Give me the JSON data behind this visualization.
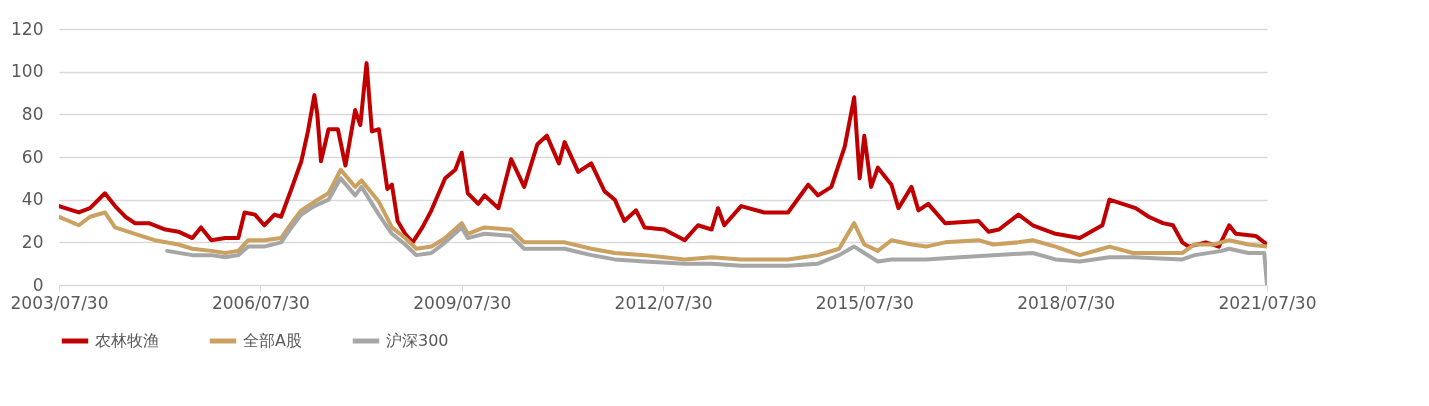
{
  "chart_data": {
    "type": "line",
    "xlim": [
      "2003-07-30",
      "2021-07-30"
    ],
    "xticks": [
      {
        "value": "2003-07-30",
        "label": "2003/07/30"
      },
      {
        "value": "2006-07-30",
        "label": "2006/07/30"
      },
      {
        "value": "2009-07-30",
        "label": "2009/07/30"
      },
      {
        "value": "2012-07-30",
        "label": "2012/07/30"
      },
      {
        "value": "2015-07-30",
        "label": "2015/07/30"
      },
      {
        "value": "2018-07-30",
        "label": "2018/07/30"
      },
      {
        "value": "2021-07-30",
        "label": "2021/07/30"
      }
    ],
    "ylim": [
      0,
      120
    ],
    "yticks": [
      0,
      20,
      40,
      60,
      80,
      100,
      120
    ],
    "grid": "y",
    "legend": "bottom",
    "line_style": "solid",
    "series": [
      {
        "name": "农林牧渔",
        "color": "#c00000",
        "x": [
          "2003-07-30",
          "2003-11-15",
          "2004-01-15",
          "2004-04-05",
          "2004-05-30",
          "2004-07-25",
          "2004-09-15",
          "2004-11-30",
          "2005-02-28",
          "2005-05-10",
          "2005-07-25",
          "2005-09-10",
          "2005-11-05",
          "2006-01-20",
          "2006-04-01",
          "2006-05-05",
          "2006-07-01",
          "2006-08-20",
          "2006-10-15",
          "2006-11-20",
          "2007-01-15",
          "2007-03-10",
          "2007-04-15",
          "2007-05-20",
          "2007-06-05",
          "2007-06-25",
          "2007-08-05",
          "2007-09-25",
          "2007-11-05",
          "2007-12-28",
          "2008-01-25",
          "2008-02-28",
          "2008-03-28",
          "2008-05-05",
          "2008-06-20",
          "2008-07-15",
          "2008-08-15",
          "2008-09-25",
          "2008-11-05",
          "2008-12-28",
          "2009-02-15",
          "2009-05-01",
          "2009-06-25",
          "2009-07-30",
          "2009-09-01",
          "2009-10-28",
          "2009-12-01",
          "2010-02-15",
          "2010-04-25",
          "2010-07-05",
          "2010-09-15",
          "2010-11-05",
          "2011-01-10",
          "2011-02-10",
          "2011-04-25",
          "2011-07-05",
          "2011-09-15",
          "2011-11-10",
          "2012-01-01",
          "2012-03-05",
          "2012-04-20",
          "2012-08-05",
          "2012-11-25",
          "2013-02-05",
          "2013-04-20",
          "2013-05-25",
          "2013-06-28",
          "2013-09-28",
          "2014-02-01",
          "2014-06-10",
          "2014-09-28",
          "2014-11-20",
          "2015-02-01",
          "2015-04-15",
          "2015-06-05",
          "2015-07-05",
          "2015-07-30",
          "2015-09-05",
          "2015-10-12",
          "2015-12-25",
          "2016-02-01",
          "2016-04-12",
          "2016-05-20",
          "2016-07-12",
          "2016-10-12",
          "2017-04-12",
          "2017-06-05",
          "2017-08-01",
          "2017-11-15",
          "2018-02-01",
          "2018-06-05",
          "2018-10-15",
          "2019-02-15",
          "2019-03-25",
          "2019-08-15",
          "2019-10-25",
          "2020-01-10",
          "2020-03-05",
          "2020-04-25",
          "2020-05-30",
          "2020-08-30",
          "2020-11-10",
          "2021-01-05",
          "2021-02-10",
          "2021-05-30",
          "2021-07-30"
        ],
        "values": [
          37,
          34,
          36,
          43,
          37,
          32,
          29,
          29,
          26,
          25,
          22,
          27,
          21,
          22,
          22,
          34,
          33,
          28,
          33,
          32,
          45,
          58,
          72,
          89,
          80,
          58,
          73,
          73,
          56,
          82,
          75,
          104,
          72,
          73,
          45,
          47,
          30,
          24,
          20,
          27,
          35,
          50,
          54,
          62,
          43,
          38,
          42,
          36,
          59,
          46,
          66,
          70,
          57,
          67,
          53,
          57,
          44,
          40,
          30,
          35,
          27,
          26,
          21,
          28,
          26,
          36,
          28,
          37,
          34,
          34,
          47,
          42,
          46,
          65,
          88,
          50,
          70,
          46,
          55,
          47,
          36,
          46,
          35,
          38,
          29,
          30,
          25,
          26,
          33,
          28,
          24,
          22,
          28,
          40,
          36,
          32,
          29,
          28,
          20,
          18,
          20,
          18,
          28,
          24,
          23,
          19
        ]
      },
      {
        "name": "全部A股",
        "color": "#caa160",
        "x": [
          "2003-07-30",
          "2003-11-15",
          "2004-01-15",
          "2004-04-05",
          "2004-05-30",
          "2004-09-15",
          "2005-01-01",
          "2005-05-10",
          "2005-07-25",
          "2005-11-05",
          "2006-01-20",
          "2006-04-01",
          "2006-05-25",
          "2006-08-20",
          "2006-11-20",
          "2007-01-15",
          "2007-03-10",
          "2007-05-20",
          "2007-08-05",
          "2007-10-10",
          "2007-12-28",
          "2008-02-01",
          "2008-05-05",
          "2008-07-15",
          "2008-09-25",
          "2008-11-25",
          "2009-02-15",
          "2009-05-01",
          "2009-07-30",
          "2009-09-01",
          "2009-12-01",
          "2010-04-25",
          "2010-07-05",
          "2010-11-05",
          "2011-02-10",
          "2011-07-05",
          "2011-11-10",
          "2012-04-20",
          "2012-11-25",
          "2013-04-20",
          "2013-09-28",
          "2014-06-10",
          "2014-11-20",
          "2015-03-15",
          "2015-06-05",
          "2015-07-30",
          "2015-10-12",
          "2015-12-25",
          "2016-04-12",
          "2016-07-01",
          "2016-10-12",
          "2017-04-12",
          "2017-07-01",
          "2017-11-15",
          "2018-02-01",
          "2018-06-05",
          "2018-10-15",
          "2019-02-15",
          "2019-03-25",
          "2019-08-01",
          "2020-01-01",
          "2020-04-25",
          "2020-07-01",
          "2020-10-15",
          "2021-01-05",
          "2021-04-20",
          "2021-07-30"
        ],
        "values": [
          32,
          28,
          32,
          34,
          27,
          24,
          21,
          19,
          17,
          16,
          15,
          16,
          21,
          21,
          22,
          29,
          35,
          39,
          43,
          54,
          46,
          49,
          39,
          27,
          22,
          17,
          18,
          22,
          29,
          24,
          27,
          26,
          20,
          20,
          20,
          17,
          15,
          14,
          12,
          13,
          12,
          12,
          14,
          17,
          29,
          19,
          16,
          21,
          19,
          18,
          20,
          21,
          19,
          20,
          21,
          18,
          14,
          17,
          18,
          15,
          15,
          15,
          19,
          19,
          21,
          19,
          18
        ]
      },
      {
        "name": "沪深300",
        "color": "#a6a6a6",
        "x": [
          "2005-03-10",
          "2005-07-25",
          "2005-11-05",
          "2006-01-20",
          "2006-04-01",
          "2006-05-25",
          "2006-08-20",
          "2006-11-20",
          "2007-01-15",
          "2007-03-10",
          "2007-05-20",
          "2007-08-05",
          "2007-10-10",
          "2007-12-28",
          "2008-02-01",
          "2008-05-05",
          "2008-07-15",
          "2008-09-25",
          "2008-11-25",
          "2009-02-15",
          "2009-05-01",
          "2009-07-30",
          "2009-09-01",
          "2009-12-01",
          "2010-04-25",
          "2010-07-05",
          "2010-11-05",
          "2011-02-10",
          "2011-07-05",
          "2011-11-10",
          "2012-04-20",
          "2012-11-25",
          "2013-04-20",
          "2013-09-28",
          "2014-06-10",
          "2014-11-20",
          "2015-03-15",
          "2015-06-05",
          "2015-07-30",
          "2015-10-12",
          "2015-12-25",
          "2016-07-01",
          "2017-01-01",
          "2017-07-01",
          "2018-02-01",
          "2018-06-05",
          "2018-10-15",
          "2019-03-25",
          "2019-08-01",
          "2020-04-25",
          "2020-07-01",
          "2020-11-25",
          "2021-01-05",
          "2021-04-20",
          "2021-07-15",
          "2021-07-30"
        ],
        "values": [
          16,
          14,
          14,
          13,
          14,
          18,
          18,
          20,
          27,
          33,
          37,
          40,
          50,
          42,
          46,
          33,
          24,
          19,
          14,
          15,
          20,
          27,
          22,
          24,
          23,
          17,
          17,
          17,
          14,
          12,
          11,
          10,
          10,
          9,
          9,
          10,
          14,
          18,
          15,
          11,
          12,
          12,
          13,
          14,
          15,
          12,
          11,
          13,
          13,
          12,
          14,
          16,
          17,
          15,
          15,
          0
        ]
      }
    ]
  }
}
